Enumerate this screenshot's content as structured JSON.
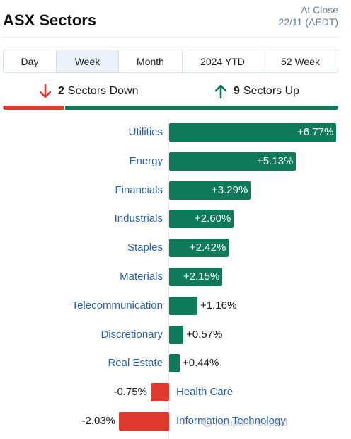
{
  "header": {
    "title": "ASX Sectors",
    "status_line1": "At Close",
    "status_line2": "22/11 (AEDT)"
  },
  "tabs": [
    {
      "label": "Day",
      "active": false
    },
    {
      "label": "Week",
      "active": true
    },
    {
      "label": "Month",
      "active": false
    },
    {
      "label": "2024 YTD",
      "active": false
    },
    {
      "label": "52 Week",
      "active": false
    }
  ],
  "summary": {
    "down_count": "2",
    "down_text": "Sectors Down",
    "up_count": "9",
    "up_text": "Sectors Up"
  },
  "colors": {
    "up": "#0e7a5a",
    "down": "#e03a2e",
    "label": "#2a62a8"
  },
  "chart_data": {
    "type": "bar",
    "orientation": "horizontal",
    "categories": [
      "Utilities",
      "Energy",
      "Financials",
      "Industrials",
      "Staples",
      "Materials",
      "Telecommunication",
      "Discretionary",
      "Real Estate",
      "Health Care",
      "Information Technology"
    ],
    "values": [
      6.77,
      5.13,
      3.29,
      2.6,
      2.42,
      2.15,
      1.16,
      0.57,
      0.44,
      -0.75,
      -2.03
    ],
    "value_labels": [
      "+6.77%",
      "+5.13%",
      "+3.29%",
      "+2.60%",
      "+2.42%",
      "+2.15%",
      "+1.16%",
      "+0.57%",
      "+0.44%",
      "-0.75%",
      "-2.03%"
    ]
  },
  "watermark": "Adaptink Capital"
}
